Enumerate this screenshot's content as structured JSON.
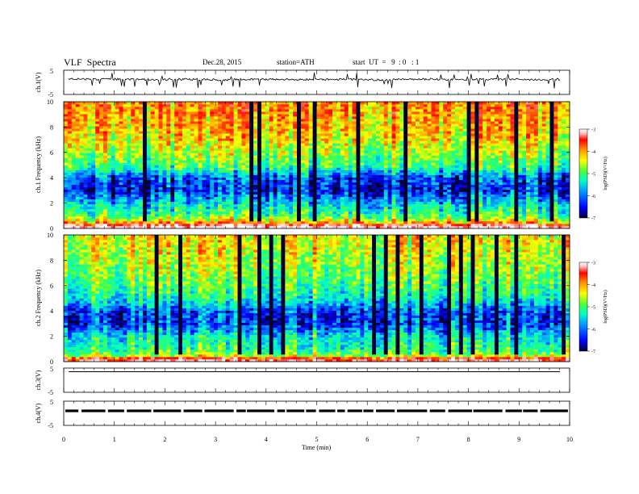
{
  "header": {
    "title": "VLF  Spectra",
    "date": "Dec.28, 2015",
    "station": "station=ATH",
    "start": "start  UT  =   9  : 0   : 1"
  },
  "colors": {
    "frame": "#000000",
    "colormap": [
      "#000033",
      "#0000ff",
      "#0099ff",
      "#00ffcc",
      "#44ff44",
      "#ffff00",
      "#ff8800",
      "#ff0000",
      "#ffbbbb",
      "#ffffff"
    ]
  },
  "chart_data": [
    {
      "type": "line",
      "panel": "ch1",
      "ylabel": "ch.1(V)",
      "ylim": [
        -5,
        5
      ],
      "yticks": [
        "5",
        "-5"
      ],
      "series": [
        {
          "values": [
            1.4,
            1.2,
            1.3,
            1.1,
            1.3,
            1.2,
            1.0,
            1.3,
            1.2,
            1.1,
            1.3,
            1.2,
            1.0,
            1.2,
            1.3,
            1.1,
            1.2,
            1.3,
            1.1,
            1.2
          ]
        }
      ]
    },
    {
      "type": "heatmap",
      "panel": "ch1-spectrogram",
      "ylabel": "ch.1\nFrequency  (kHz)",
      "ylim": [
        0,
        10
      ],
      "yticks": [
        "0",
        "2",
        "4",
        "6",
        "8",
        "10"
      ],
      "colorbar": {
        "label": "log(PSD)(V²/Hz)",
        "range": [
          -7,
          -3
        ],
        "ticks": [
          "-3",
          "-4",
          "-5",
          "-6",
          "-7"
        ]
      },
      "profile": [
        {
          "f": 0.2,
          "v": -3.2
        },
        {
          "f": 0.5,
          "v": -4.5
        },
        {
          "f": 1.0,
          "v": -5.3
        },
        {
          "f": 2.0,
          "v": -5.8
        },
        {
          "f": 3.0,
          "v": -6.5
        },
        {
          "f": 4.0,
          "v": -6.3
        },
        {
          "f": 5.0,
          "v": -5.3
        },
        {
          "f": 6.0,
          "v": -5.0
        },
        {
          "f": 7.0,
          "v": -4.7
        },
        {
          "f": 8.0,
          "v": -4.5
        },
        {
          "f": 9.0,
          "v": -4.4
        },
        {
          "f": 10.0,
          "v": -4.3
        }
      ]
    },
    {
      "type": "heatmap",
      "panel": "ch2-spectrogram",
      "ylabel": "ch.2\nFrequency  (kHz)",
      "ylim": [
        0,
        10
      ],
      "yticks": [
        "0",
        "2",
        "4",
        "6",
        "8",
        "10"
      ],
      "colorbar": {
        "label": "log(PSD)(V²/Hz)",
        "range": [
          -7,
          -3
        ],
        "ticks": [
          "-3",
          "-4",
          "-5",
          "-6",
          "-7"
        ]
      },
      "profile": [
        {
          "f": 0.2,
          "v": -3.5
        },
        {
          "f": 0.5,
          "v": -5.0
        },
        {
          "f": 1.0,
          "v": -5.4
        },
        {
          "f": 2.0,
          "v": -5.7
        },
        {
          "f": 3.0,
          "v": -6.4
        },
        {
          "f": 4.0,
          "v": -6.3
        },
        {
          "f": 5.0,
          "v": -5.6
        },
        {
          "f": 6.0,
          "v": -5.3
        },
        {
          "f": 7.0,
          "v": -5.1
        },
        {
          "f": 8.0,
          "v": -4.9
        },
        {
          "f": 9.0,
          "v": -4.8
        },
        {
          "f": 10.0,
          "v": -4.7
        }
      ]
    },
    {
      "type": "line",
      "panel": "ch3",
      "ylabel": "ch.3(V)",
      "ylim": [
        -5,
        5
      ],
      "yticks": [
        "5",
        "-5"
      ],
      "series": [
        {
          "values": [
            3.5,
            3.5
          ]
        }
      ]
    },
    {
      "type": "line",
      "panel": "ch4",
      "ylabel": "ch.4(V)",
      "ylim": [
        -5,
        5
      ],
      "yticks": [
        "5",
        "-5"
      ],
      "series": [
        {
          "values": [
            1.0,
            1.0
          ]
        }
      ]
    }
  ],
  "xaxis": {
    "label": "Time  (min)",
    "xlim": [
      0,
      10
    ],
    "ticks": [
      "0",
      "1",
      "2",
      "3",
      "4",
      "5",
      "6",
      "7",
      "8",
      "9",
      "10"
    ]
  }
}
